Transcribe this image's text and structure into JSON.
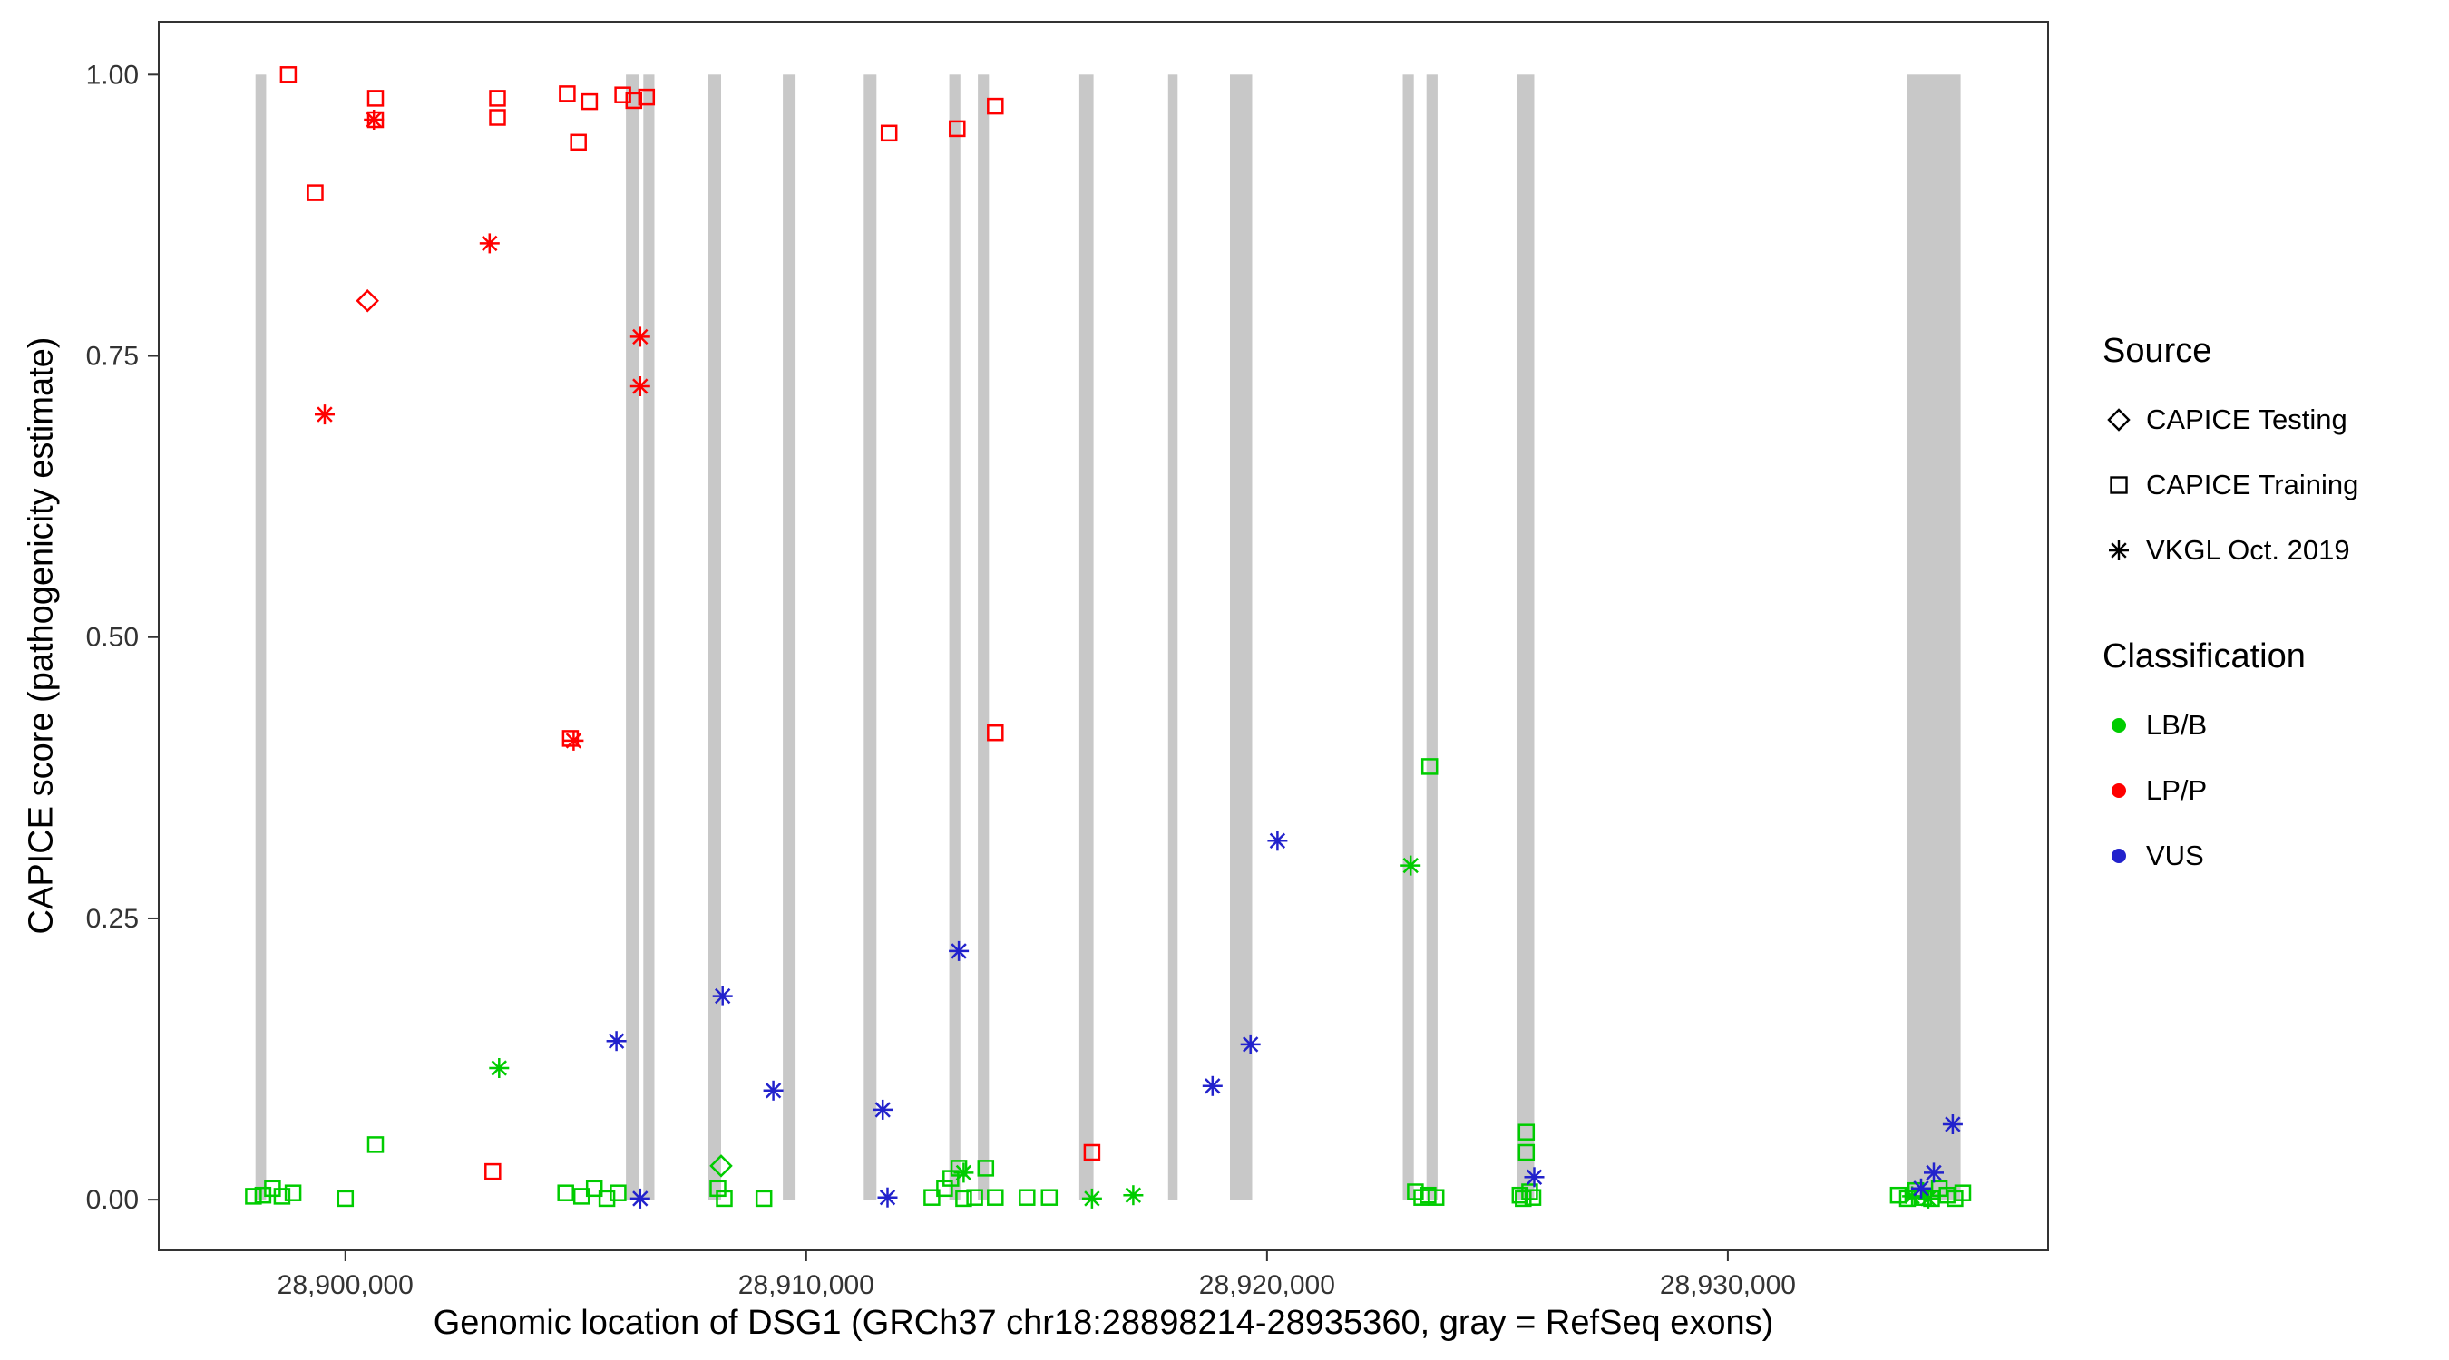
{
  "legend": {
    "source": {
      "title": "Source",
      "items": [
        {
          "label": "CAPICE Testing",
          "shape": "diamond"
        },
        {
          "label": "CAPICE Training",
          "shape": "square"
        },
        {
          "label": "VKGL Oct. 2019",
          "shape": "asterisk"
        }
      ]
    },
    "classification": {
      "title": "Classification",
      "items": [
        {
          "label": "LB/B",
          "color": "#00CC00"
        },
        {
          "label": "LP/P",
          "color": "#FF0000"
        },
        {
          "label": "VUS",
          "color": "#2222CC"
        }
      ]
    }
  },
  "chart_data": {
    "type": "scatter",
    "title": "",
    "xlabel": "Genomic location of DSG1 (GRCh37 chr18:28898214-28935360, gray = RefSeq exons)",
    "ylabel": "CAPICE score (pathogenicity estimate)",
    "x_domain": [
      28895950,
      28936950
    ],
    "y_domain": [
      -0.045,
      1.047
    ],
    "grid": false,
    "legend_position": "right",
    "x_ticks": [
      {
        "value": 28900000,
        "label": "28,900,000"
      },
      {
        "value": 28910000,
        "label": "28,910,000"
      },
      {
        "value": 28920000,
        "label": "28,920,000"
      },
      {
        "value": 28930000,
        "label": "28,930,000"
      }
    ],
    "y_ticks": [
      {
        "value": 0.0,
        "label": "0.00"
      },
      {
        "value": 0.25,
        "label": "0.25"
      },
      {
        "value": 0.5,
        "label": "0.50"
      },
      {
        "value": 0.75,
        "label": "0.75"
      },
      {
        "value": 1.0,
        "label": "1.00"
      }
    ],
    "exon_color": "#C8C8C8",
    "exons": [
      [
        28898050,
        28898280
      ],
      [
        28906089,
        28906364
      ],
      [
        28906467,
        28906708
      ],
      [
        28907878,
        28908153
      ],
      [
        28909494,
        28909770
      ],
      [
        28911249,
        28911524
      ],
      [
        28913106,
        28913347
      ],
      [
        28913726,
        28913966
      ],
      [
        28915927,
        28916237
      ],
      [
        28917854,
        28918060
      ],
      [
        28919195,
        28919677
      ],
      [
        28922945,
        28923186
      ],
      [
        28923461,
        28923702
      ],
      [
        28925422,
        28925800
      ],
      [
        28933884,
        28935054
      ]
    ],
    "classification_colors": {
      "LB/B": "#00CC00",
      "LP/P": "#FF0000",
      "VUS": "#2222CC"
    },
    "shape_by_source": {
      "CAPICE Testing": "diamond",
      "CAPICE Training": "square",
      "VKGL Oct. 2019": "asterisk"
    },
    "points": [
      {
        "g": 28898762,
        "s": 1.0,
        "shape": "square",
        "cls": "LP/P"
      },
      {
        "g": 28899346,
        "s": 0.895,
        "shape": "square",
        "cls": "LP/P"
      },
      {
        "g": 28900654,
        "s": 0.979,
        "shape": "square",
        "cls": "LP/P"
      },
      {
        "g": 28900654,
        "s": 0.96,
        "shape": "square",
        "cls": "LP/P"
      },
      {
        "g": 28900619,
        "s": 0.96,
        "shape": "asterisk",
        "cls": "LP/P"
      },
      {
        "g": 28899553,
        "s": 0.698,
        "shape": "asterisk",
        "cls": "LP/P"
      },
      {
        "g": 28900482,
        "s": 0.799,
        "shape": "diamond",
        "cls": "LP/P"
      },
      {
        "g": 28903302,
        "s": 0.979,
        "shape": "square",
        "cls": "LP/P"
      },
      {
        "g": 28903302,
        "s": 0.962,
        "shape": "square",
        "cls": "LP/P"
      },
      {
        "g": 28903130,
        "s": 0.85,
        "shape": "asterisk",
        "cls": "LP/P"
      },
      {
        "g": 28903199,
        "s": 0.025,
        "shape": "square",
        "cls": "LP/P"
      },
      {
        "g": 28904816,
        "s": 0.983,
        "shape": "square",
        "cls": "LP/P"
      },
      {
        "g": 28905057,
        "s": 0.94,
        "shape": "square",
        "cls": "LP/P"
      },
      {
        "g": 28905298,
        "s": 0.976,
        "shape": "square",
        "cls": "LP/P"
      },
      {
        "g": 28906020,
        "s": 0.982,
        "shape": "square",
        "cls": "LP/P"
      },
      {
        "g": 28906261,
        "s": 0.977,
        "shape": "square",
        "cls": "LP/P"
      },
      {
        "g": 28906536,
        "s": 0.98,
        "shape": "square",
        "cls": "LP/P"
      },
      {
        "g": 28904885,
        "s": 0.41,
        "shape": "square",
        "cls": "LP/P"
      },
      {
        "g": 28904954,
        "s": 0.408,
        "shape": "asterisk",
        "cls": "LP/P"
      },
      {
        "g": 28906398,
        "s": 0.767,
        "shape": "asterisk",
        "cls": "LP/P"
      },
      {
        "g": 28906398,
        "s": 0.723,
        "shape": "asterisk",
        "cls": "LP/P"
      },
      {
        "g": 28911799,
        "s": 0.948,
        "shape": "square",
        "cls": "LP/P"
      },
      {
        "g": 28913278,
        "s": 0.952,
        "shape": "square",
        "cls": "LP/P"
      },
      {
        "g": 28914104,
        "s": 0.972,
        "shape": "square",
        "cls": "LP/P"
      },
      {
        "g": 28914104,
        "s": 0.415,
        "shape": "square",
        "cls": "LP/P"
      },
      {
        "g": 28916202,
        "s": 0.042,
        "shape": "square",
        "cls": "LP/P"
      },
      {
        "g": 28898005,
        "s": 0.003,
        "shape": "square",
        "cls": "LB/B"
      },
      {
        "g": 28898211,
        "s": 0.004,
        "shape": "square",
        "cls": "LB/B"
      },
      {
        "g": 28898418,
        "s": 0.01,
        "shape": "square",
        "cls": "LB/B"
      },
      {
        "g": 28898624,
        "s": 0.003,
        "shape": "square",
        "cls": "LB/B"
      },
      {
        "g": 28898865,
        "s": 0.006,
        "shape": "square",
        "cls": "LB/B"
      },
      {
        "g": 28900000,
        "s": 0.001,
        "shape": "square",
        "cls": "LB/B"
      },
      {
        "g": 28900654,
        "s": 0.049,
        "shape": "square",
        "cls": "LB/B"
      },
      {
        "g": 28903337,
        "s": 0.117,
        "shape": "asterisk",
        "cls": "LB/B"
      },
      {
        "g": 28904782,
        "s": 0.006,
        "shape": "square",
        "cls": "LB/B"
      },
      {
        "g": 28905126,
        "s": 0.003,
        "shape": "square",
        "cls": "LB/B"
      },
      {
        "g": 28905401,
        "s": 0.01,
        "shape": "square",
        "cls": "LB/B"
      },
      {
        "g": 28905676,
        "s": 0.001,
        "shape": "square",
        "cls": "LB/B"
      },
      {
        "g": 28905917,
        "s": 0.006,
        "shape": "square",
        "cls": "LB/B"
      },
      {
        "g": 28908084,
        "s": 0.01,
        "shape": "square",
        "cls": "LB/B"
      },
      {
        "g": 28908153,
        "s": 0.03,
        "shape": "diamond",
        "cls": "LB/B"
      },
      {
        "g": 28908222,
        "s": 0.001,
        "shape": "square",
        "cls": "LB/B"
      },
      {
        "g": 28909082,
        "s": 0.001,
        "shape": "square",
        "cls": "LB/B"
      },
      {
        "g": 28912728,
        "s": 0.002,
        "shape": "square",
        "cls": "LB/B"
      },
      {
        "g": 28913003,
        "s": 0.01,
        "shape": "square",
        "cls": "LB/B"
      },
      {
        "g": 28913140,
        "s": 0.019,
        "shape": "square",
        "cls": "LB/B"
      },
      {
        "g": 28913312,
        "s": 0.028,
        "shape": "square",
        "cls": "LB/B"
      },
      {
        "g": 28913416,
        "s": 0.024,
        "shape": "asterisk",
        "cls": "LB/B"
      },
      {
        "g": 28913416,
        "s": 0.001,
        "shape": "square",
        "cls": "LB/B"
      },
      {
        "g": 28913656,
        "s": 0.002,
        "shape": "square",
        "cls": "LB/B"
      },
      {
        "g": 28913897,
        "s": 0.028,
        "shape": "square",
        "cls": "LB/B"
      },
      {
        "g": 28914104,
        "s": 0.002,
        "shape": "square",
        "cls": "LB/B"
      },
      {
        "g": 28914792,
        "s": 0.002,
        "shape": "square",
        "cls": "LB/B"
      },
      {
        "g": 28915274,
        "s": 0.002,
        "shape": "square",
        "cls": "LB/B"
      },
      {
        "g": 28916202,
        "s": 0.001,
        "shape": "asterisk",
        "cls": "LB/B"
      },
      {
        "g": 28917097,
        "s": 0.004,
        "shape": "asterisk",
        "cls": "LB/B"
      },
      {
        "g": 28923117,
        "s": 0.297,
        "shape": "asterisk",
        "cls": "LB/B"
      },
      {
        "g": 28923220,
        "s": 0.007,
        "shape": "square",
        "cls": "LB/B"
      },
      {
        "g": 28923358,
        "s": 0.002,
        "shape": "square",
        "cls": "LB/B"
      },
      {
        "g": 28923495,
        "s": 0.004,
        "shape": "square",
        "cls": "LB/B"
      },
      {
        "g": 28923667,
        "s": 0.002,
        "shape": "square",
        "cls": "LB/B"
      },
      {
        "g": 28923530,
        "s": 0.385,
        "shape": "square",
        "cls": "LB/B"
      },
      {
        "g": 28925628,
        "s": 0.06,
        "shape": "square",
        "cls": "LB/B"
      },
      {
        "g": 28925628,
        "s": 0.042,
        "shape": "square",
        "cls": "LB/B"
      },
      {
        "g": 28925490,
        "s": 0.004,
        "shape": "square",
        "cls": "LB/B"
      },
      {
        "g": 28925560,
        "s": 0.001,
        "shape": "square",
        "cls": "LB/B"
      },
      {
        "g": 28925700,
        "s": 0.007,
        "shape": "square",
        "cls": "LB/B"
      },
      {
        "g": 28925770,
        "s": 0.002,
        "shape": "square",
        "cls": "LB/B"
      },
      {
        "g": 28933700,
        "s": 0.004,
        "shape": "square",
        "cls": "LB/B"
      },
      {
        "g": 28933900,
        "s": 0.001,
        "shape": "square",
        "cls": "LB/B"
      },
      {
        "g": 28934000,
        "s": 0.003,
        "shape": "asterisk",
        "cls": "LB/B"
      },
      {
        "g": 28934080,
        "s": 0.008,
        "shape": "square",
        "cls": "LB/B"
      },
      {
        "g": 28934250,
        "s": 0.002,
        "shape": "square",
        "cls": "LB/B"
      },
      {
        "g": 28934350,
        "s": 0.001,
        "shape": "asterisk",
        "cls": "LB/B"
      },
      {
        "g": 28934420,
        "s": 0.001,
        "shape": "square",
        "cls": "LB/B"
      },
      {
        "g": 28934590,
        "s": 0.01,
        "shape": "square",
        "cls": "LB/B"
      },
      {
        "g": 28934760,
        "s": 0.004,
        "shape": "square",
        "cls": "LB/B"
      },
      {
        "g": 28934930,
        "s": 0.001,
        "shape": "square",
        "cls": "LB/B"
      },
      {
        "g": 28935100,
        "s": 0.006,
        "shape": "square",
        "cls": "LB/B"
      },
      {
        "g": 28905882,
        "s": 0.141,
        "shape": "asterisk",
        "cls": "VUS"
      },
      {
        "g": 28906398,
        "s": 0.001,
        "shape": "asterisk",
        "cls": "VUS"
      },
      {
        "g": 28908187,
        "s": 0.181,
        "shape": "asterisk",
        "cls": "VUS"
      },
      {
        "g": 28909288,
        "s": 0.097,
        "shape": "asterisk",
        "cls": "VUS"
      },
      {
        "g": 28911662,
        "s": 0.08,
        "shape": "asterisk",
        "cls": "VUS"
      },
      {
        "g": 28911765,
        "s": 0.002,
        "shape": "asterisk",
        "cls": "VUS"
      },
      {
        "g": 28913312,
        "s": 0.221,
        "shape": "asterisk",
        "cls": "VUS"
      },
      {
        "g": 28918817,
        "s": 0.101,
        "shape": "asterisk",
        "cls": "VUS"
      },
      {
        "g": 28919642,
        "s": 0.138,
        "shape": "asterisk",
        "cls": "VUS"
      },
      {
        "g": 28920227,
        "s": 0.319,
        "shape": "asterisk",
        "cls": "VUS"
      },
      {
        "g": 28925800,
        "s": 0.02,
        "shape": "asterisk",
        "cls": "VUS"
      },
      {
        "g": 28934194,
        "s": 0.01,
        "shape": "asterisk",
        "cls": "VUS"
      },
      {
        "g": 28934469,
        "s": 0.024,
        "shape": "asterisk",
        "cls": "VUS"
      },
      {
        "g": 28934882,
        "s": 0.067,
        "shape": "asterisk",
        "cls": "VUS"
      }
    ]
  }
}
